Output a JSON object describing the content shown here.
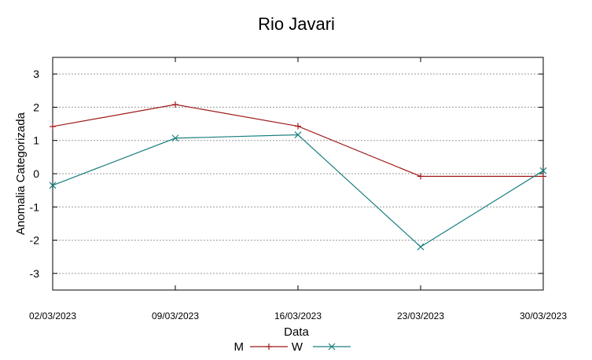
{
  "chart_data": {
    "type": "line",
    "title": "Rio Javari",
    "xlabel": "Data",
    "ylabel": "Anomalia Categorizada",
    "categories": [
      "02/03/2023",
      "09/03/2023",
      "16/03/2023",
      "23/03/2023",
      "30/03/2023"
    ],
    "ylim": [
      -3.5,
      3.5
    ],
    "yticks": [
      3,
      2,
      1,
      0,
      -1,
      -2,
      -3
    ],
    "ytick_labels": [
      "3",
      "2",
      "1",
      "0",
      "-1",
      "-2",
      "-3"
    ],
    "grid": true,
    "legend_position": "bottom-center",
    "series": [
      {
        "name": "M",
        "color": "#a01818",
        "marker": "plus",
        "values": [
          1.42,
          2.08,
          1.43,
          -0.08,
          -0.08
        ]
      },
      {
        "name": "W",
        "color": "#1b7f7f",
        "marker": "x",
        "values": [
          -0.35,
          1.07,
          1.17,
          -2.2,
          0.09
        ]
      }
    ]
  }
}
